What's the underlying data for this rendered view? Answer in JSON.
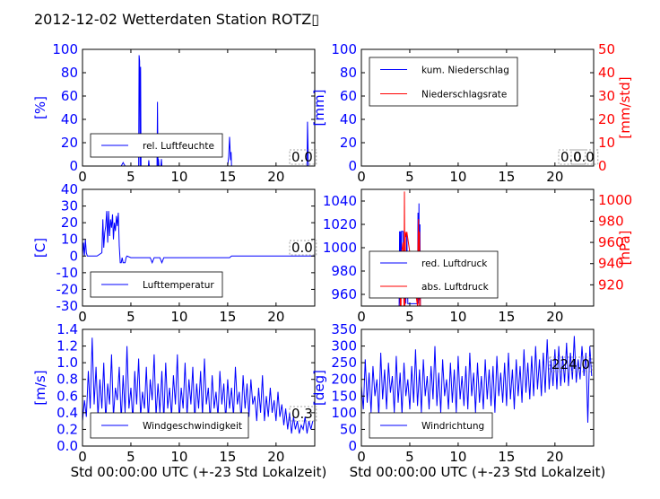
{
  "title": "2012-12-02 Wetterdaten Station ROTZ▯",
  "colors": {
    "primary": "#0000ff",
    "secondary": "#ff0000",
    "text": "#000000",
    "background": "#ffffff"
  },
  "chart_data": [
    {
      "id": "humidity",
      "type": "line",
      "xlim": [
        0,
        24
      ],
      "ylim": [
        0,
        100
      ],
      "xticks": [
        0,
        5,
        10,
        15,
        20
      ],
      "yticks": [
        0,
        20,
        40,
        60,
        80,
        100
      ],
      "ylabel": "[%]",
      "legend": [
        {
          "label": "rel. Luftfeuchte",
          "color": "#0000ff"
        }
      ],
      "legend_position": "lower-left",
      "value_box": "0.0",
      "series": [
        {
          "name": "rel. Luftfeuchte",
          "color": "#0000ff",
          "axis": "left",
          "x": [
            0,
            4.0,
            4.2,
            4.4,
            5.8,
            5.85,
            5.9,
            5.95,
            6.0,
            6.05,
            6.1,
            6.8,
            6.85,
            6.9,
            7.7,
            7.75,
            7.8,
            7.85,
            7.9,
            8.1,
            8.15,
            8.2,
            8.3,
            15.0,
            15.1,
            15.2,
            15.3,
            15.35,
            15.4,
            15.6,
            23.2,
            23.25,
            23.3,
            23.35,
            24
          ],
          "y": [
            0,
            0,
            3,
            0,
            0,
            95,
            90,
            0,
            85,
            0,
            0,
            0,
            5,
            0,
            0,
            55,
            0,
            6,
            0,
            0,
            6,
            0,
            0,
            0,
            8,
            25,
            5,
            12,
            0,
            0,
            0,
            38,
            20,
            0,
            0
          ]
        }
      ]
    },
    {
      "id": "precipitation",
      "type": "line",
      "xlim": [
        0,
        24
      ],
      "ylim": [
        0,
        100
      ],
      "y2lim": [
        0,
        50
      ],
      "xticks": [
        0,
        5,
        10,
        15,
        20
      ],
      "yticks": [
        0,
        20,
        40,
        60,
        80,
        100
      ],
      "y2ticks": [
        0,
        10,
        20,
        30,
        40,
        50
      ],
      "ylabel": "[mm]",
      "y2label": "[mm/std]",
      "legend": [
        {
          "label": "kum. Niederschlag",
          "color": "#0000ff"
        },
        {
          "label": "Niederschlagsrate",
          "color": "#ff0000"
        }
      ],
      "legend_position": "upper-left",
      "value_boxes": [
        "0.0",
        "0.0"
      ],
      "series": [
        {
          "name": "kum. Niederschlag",
          "color": "#0000ff",
          "axis": "left",
          "x": [
            0,
            24
          ],
          "y": [
            0,
            0
          ]
        },
        {
          "name": "Niederschlagsrate",
          "color": "#ff0000",
          "axis": "right",
          "x": [
            0,
            24
          ],
          "y": [
            0,
            0
          ]
        }
      ]
    },
    {
      "id": "temperature",
      "type": "line",
      "xlim": [
        0,
        24
      ],
      "ylim": [
        -30,
        40
      ],
      "xticks": [
        0,
        5,
        10,
        15,
        20
      ],
      "yticks": [
        -30,
        -20,
        -10,
        0,
        10,
        20,
        30,
        40
      ],
      "ylabel": "[C]",
      "legend": [
        {
          "label": "Lufttemperatur",
          "color": "#0000ff"
        }
      ],
      "legend_position": "lower-left",
      "value_box": "0.0",
      "series": [
        {
          "name": "Lufttemperatur",
          "color": "#0000ff",
          "axis": "left",
          "x": [
            0,
            0.1,
            0.2,
            0.3,
            0.4,
            0.5,
            1.0,
            1.5,
            2.0,
            2.1,
            2.2,
            2.3,
            2.4,
            2.5,
            2.6,
            2.7,
            2.8,
            2.9,
            3.0,
            3.1,
            3.2,
            3.3,
            3.4,
            3.5,
            3.6,
            3.7,
            3.8,
            3.9,
            4.0,
            4.1,
            4.2,
            4.4,
            4.5,
            4.6,
            5.0,
            6.0,
            7.0,
            7.2,
            7.4,
            8.0,
            8.2,
            8.4,
            9.0,
            15.0,
            15.2,
            15.4,
            24
          ],
          "y": [
            0,
            8,
            0,
            10,
            2,
            0,
            0,
            0,
            2,
            22,
            5,
            14,
            18,
            27,
            8,
            27,
            12,
            22,
            17,
            25,
            10,
            20,
            15,
            24,
            18,
            26,
            6,
            -4,
            -4,
            -1,
            -4,
            -4,
            -1,
            0,
            -1,
            -1,
            -1,
            -4,
            -1,
            -1,
            -4,
            -1,
            -1,
            -1,
            -1,
            0,
            0
          ]
        }
      ]
    },
    {
      "id": "pressure",
      "type": "line",
      "xlim": [
        0,
        24
      ],
      "ylim": [
        950,
        1050
      ],
      "y2lim": [
        900,
        1010
      ],
      "xticks": [
        0,
        5,
        10,
        15,
        20
      ],
      "yticks": [
        960,
        980,
        1000,
        1020,
        1040
      ],
      "y2ticks": [
        920,
        940,
        960,
        980,
        1000
      ],
      "ylabel": "",
      "y2label": "[hPa]",
      "legend": [
        {
          "label": "red. Luftdruck",
          "color": "#0000ff"
        },
        {
          "label": "abs. Luftdruck",
          "color": "#ff0000"
        }
      ],
      "legend_position": "lower-left",
      "series": [
        {
          "name": "red. Luftdruck",
          "color": "#0000ff",
          "axis": "left",
          "x": [
            3.9,
            3.95,
            4.0,
            4.05,
            4.1,
            4.15,
            4.2,
            4.3,
            4.4,
            4.5,
            4.6,
            4.7,
            4.8,
            5.8,
            5.85,
            5.9,
            5.95,
            6.0,
            6.05,
            6.1
          ],
          "y": [
            950,
            1014,
            952,
            1014,
            965,
            1014,
            1014,
            1014,
            952,
            1013,
            952,
            1013,
            952,
            952,
            1030,
            952,
            1038,
            955,
            1020,
            950
          ]
        },
        {
          "name": "abs. Luftdruck",
          "color": "#ff0000",
          "axis": "right",
          "x": [
            4.0,
            4.05,
            4.1,
            4.15,
            4.2,
            4.3,
            4.4,
            4.45,
            4.5,
            4.55,
            4.6,
            4.7,
            5.8,
            5.85,
            5.9,
            5.95,
            6.0,
            6.1
          ],
          "y": [
            900,
            948,
            900,
            950,
            953,
            960,
            900,
            1008,
            900,
            970,
            965,
            970,
            900,
            955,
            982,
            900,
            970,
            900
          ]
        }
      ]
    },
    {
      "id": "wind_speed",
      "type": "line",
      "xlim": [
        0,
        24
      ],
      "ylim": [
        0,
        1.4
      ],
      "xticks": [
        0,
        5,
        10,
        15,
        20
      ],
      "yticks": [
        0.0,
        0.2,
        0.4,
        0.6,
        0.8,
        1.0,
        1.2,
        1.4
      ],
      "ylabel": "[m/s]",
      "xlabel": "Std 00:00:00 UTC (+-23 Std Lokalzeit)",
      "legend": [
        {
          "label": "Windgeschwindigkeit",
          "color": "#0000ff"
        }
      ],
      "legend_position": "lower-left",
      "value_box": "0.3",
      "series": [
        {
          "name": "Windgeschwindigkeit",
          "color": "#0000ff",
          "axis": "left",
          "x": [
            0,
            0.2,
            0.4,
            0.6,
            0.8,
            1.0,
            1.2,
            1.4,
            1.6,
            1.8,
            2.0,
            2.2,
            2.4,
            2.6,
            2.8,
            3.0,
            3.2,
            3.4,
            3.6,
            3.8,
            4.0,
            4.2,
            4.4,
            4.6,
            4.8,
            5.0,
            5.2,
            5.4,
            5.6,
            5.8,
            6.0,
            6.2,
            6.4,
            6.6,
            6.8,
            7.0,
            7.2,
            7.4,
            7.6,
            7.8,
            8.0,
            8.2,
            8.4,
            8.6,
            8.8,
            9.0,
            9.2,
            9.4,
            9.6,
            9.8,
            10.0,
            10.2,
            10.4,
            10.6,
            10.8,
            11.0,
            11.2,
            11.4,
            11.6,
            11.8,
            12.0,
            12.2,
            12.4,
            12.6,
            12.8,
            13.0,
            13.2,
            13.4,
            13.6,
            13.8,
            14.0,
            14.2,
            14.4,
            14.6,
            14.8,
            15.0,
            15.2,
            15.4,
            15.6,
            15.8,
            16.0,
            16.2,
            16.4,
            16.6,
            16.8,
            17.0,
            17.2,
            17.4,
            17.6,
            17.8,
            18.0,
            18.2,
            18.4,
            18.6,
            18.8,
            19.0,
            19.2,
            19.4,
            19.6,
            19.8,
            20.0,
            20.2,
            20.4,
            20.6,
            20.8,
            21.0,
            21.2,
            21.4,
            21.6,
            21.8,
            22.0,
            22.2,
            22.4,
            22.6,
            22.8,
            23.0,
            23.2,
            23.4,
            23.6,
            23.8
          ],
          "y": [
            0.3,
            0.55,
            0.35,
            0.9,
            0.45,
            1.3,
            0.5,
            0.95,
            0.35,
            0.8,
            0.45,
            1.0,
            0.3,
            0.75,
            0.5,
            1.1,
            0.35,
            0.7,
            0.55,
            0.95,
            0.3,
            0.85,
            0.4,
            1.2,
            0.45,
            0.7,
            0.3,
            0.9,
            0.5,
            1.05,
            0.35,
            0.65,
            0.45,
            0.95,
            0.3,
            0.8,
            0.55,
            1.1,
            0.35,
            0.75,
            0.4,
            0.9,
            0.3,
            1.0,
            0.45,
            0.7,
            0.35,
            0.85,
            0.5,
            1.1,
            0.3,
            0.7,
            0.45,
            1.0,
            0.35,
            0.8,
            0.5,
            0.95,
            0.3,
            0.75,
            0.45,
            0.9,
            0.35,
            1.05,
            0.5,
            0.7,
            0.3,
            0.85,
            0.45,
            0.65,
            0.35,
            0.9,
            0.5,
            0.75,
            0.3,
            0.8,
            0.45,
            0.7,
            0.35,
            0.95,
            0.5,
            0.65,
            0.3,
            0.85,
            0.45,
            0.75,
            0.35,
            0.8,
            0.5,
            0.6,
            0.3,
            0.7,
            0.4,
            0.85,
            0.3,
            0.6,
            0.35,
            0.7,
            0.4,
            0.55,
            0.3,
            0.65,
            0.35,
            0.5,
            0.25,
            0.45,
            0.2,
            0.4,
            0.15,
            0.35,
            0.2,
            0.3,
            0.15,
            0.25,
            0.2,
            0.35,
            0.15,
            0.3,
            0.2,
            0.3
          ]
        }
      ]
    },
    {
      "id": "wind_direction",
      "type": "line",
      "xlim": [
        0,
        24
      ],
      "ylim": [
        0,
        350
      ],
      "xticks": [
        0,
        5,
        10,
        15,
        20
      ],
      "yticks": [
        0,
        50,
        100,
        150,
        200,
        250,
        300,
        350
      ],
      "ylabel": "[deg]",
      "xlabel": "Std 00:00:00 UTC (+-23 Std Lokalzeit)",
      "legend": [
        {
          "label": "Windrichtung",
          "color": "#0000ff"
        }
      ],
      "legend_position": "lower-left",
      "value_box": "224.0",
      "series": [
        {
          "name": "Windrichtung",
          "color": "#0000ff",
          "axis": "left",
          "x": [
            0,
            0.2,
            0.4,
            0.6,
            0.8,
            1.0,
            1.2,
            1.4,
            1.6,
            1.8,
            2.0,
            2.2,
            2.4,
            2.6,
            2.8,
            3.0,
            3.2,
            3.4,
            3.6,
            3.8,
            4.0,
            4.2,
            4.4,
            4.6,
            4.8,
            5.0,
            5.2,
            5.4,
            5.6,
            5.8,
            6.0,
            6.2,
            6.4,
            6.6,
            6.8,
            7.0,
            7.2,
            7.4,
            7.6,
            7.8,
            8.0,
            8.2,
            8.4,
            8.6,
            8.8,
            9.0,
            9.2,
            9.4,
            9.6,
            9.8,
            10.0,
            10.2,
            10.4,
            10.6,
            10.8,
            11.0,
            11.2,
            11.4,
            11.6,
            11.8,
            12.0,
            12.2,
            12.4,
            12.6,
            12.8,
            13.0,
            13.2,
            13.4,
            13.6,
            13.8,
            14.0,
            14.2,
            14.4,
            14.6,
            14.8,
            15.0,
            15.2,
            15.4,
            15.6,
            15.8,
            16.0,
            16.2,
            16.4,
            16.6,
            16.8,
            17.0,
            17.2,
            17.4,
            17.6,
            17.8,
            18.0,
            18.2,
            18.4,
            18.6,
            18.8,
            19.0,
            19.2,
            19.4,
            19.6,
            19.8,
            20.0,
            20.2,
            20.4,
            20.6,
            20.8,
            21.0,
            21.2,
            21.4,
            21.6,
            21.8,
            22.0,
            22.2,
            22.4,
            22.6,
            22.8,
            23.0,
            23.2,
            23.4,
            23.6,
            23.8
          ],
          "y": [
            180,
            110,
            260,
            130,
            220,
            100,
            240,
            150,
            200,
            90,
            280,
            140,
            230,
            110,
            250,
            160,
            210,
            100,
            270,
            130,
            220,
            95,
            250,
            150,
            200,
            110,
            240,
            130,
            290,
            120,
            230,
            100,
            260,
            150,
            210,
            110,
            240,
            140,
            300,
            120,
            220,
            100,
            260,
            150,
            200,
            110,
            250,
            130,
            230,
            100,
            270,
            140,
            210,
            120,
            240,
            110,
            280,
            150,
            220,
            100,
            250,
            130,
            210,
            110,
            260,
            140,
            230,
            120,
            240,
            100,
            270,
            150,
            220,
            130,
            250,
            120,
            280,
            140,
            230,
            110,
            260,
            150,
            240,
            130,
            290,
            160,
            250,
            140,
            270,
            150,
            300,
            170,
            260,
            150,
            280,
            160,
            320,
            170,
            260,
            180,
            290,
            170,
            300,
            180,
            270,
            190,
            310,
            180,
            280,
            200,
            330,
            190,
            260,
            200,
            300,
            210,
            280,
            70,
            300,
            210
          ]
        }
      ]
    }
  ]
}
